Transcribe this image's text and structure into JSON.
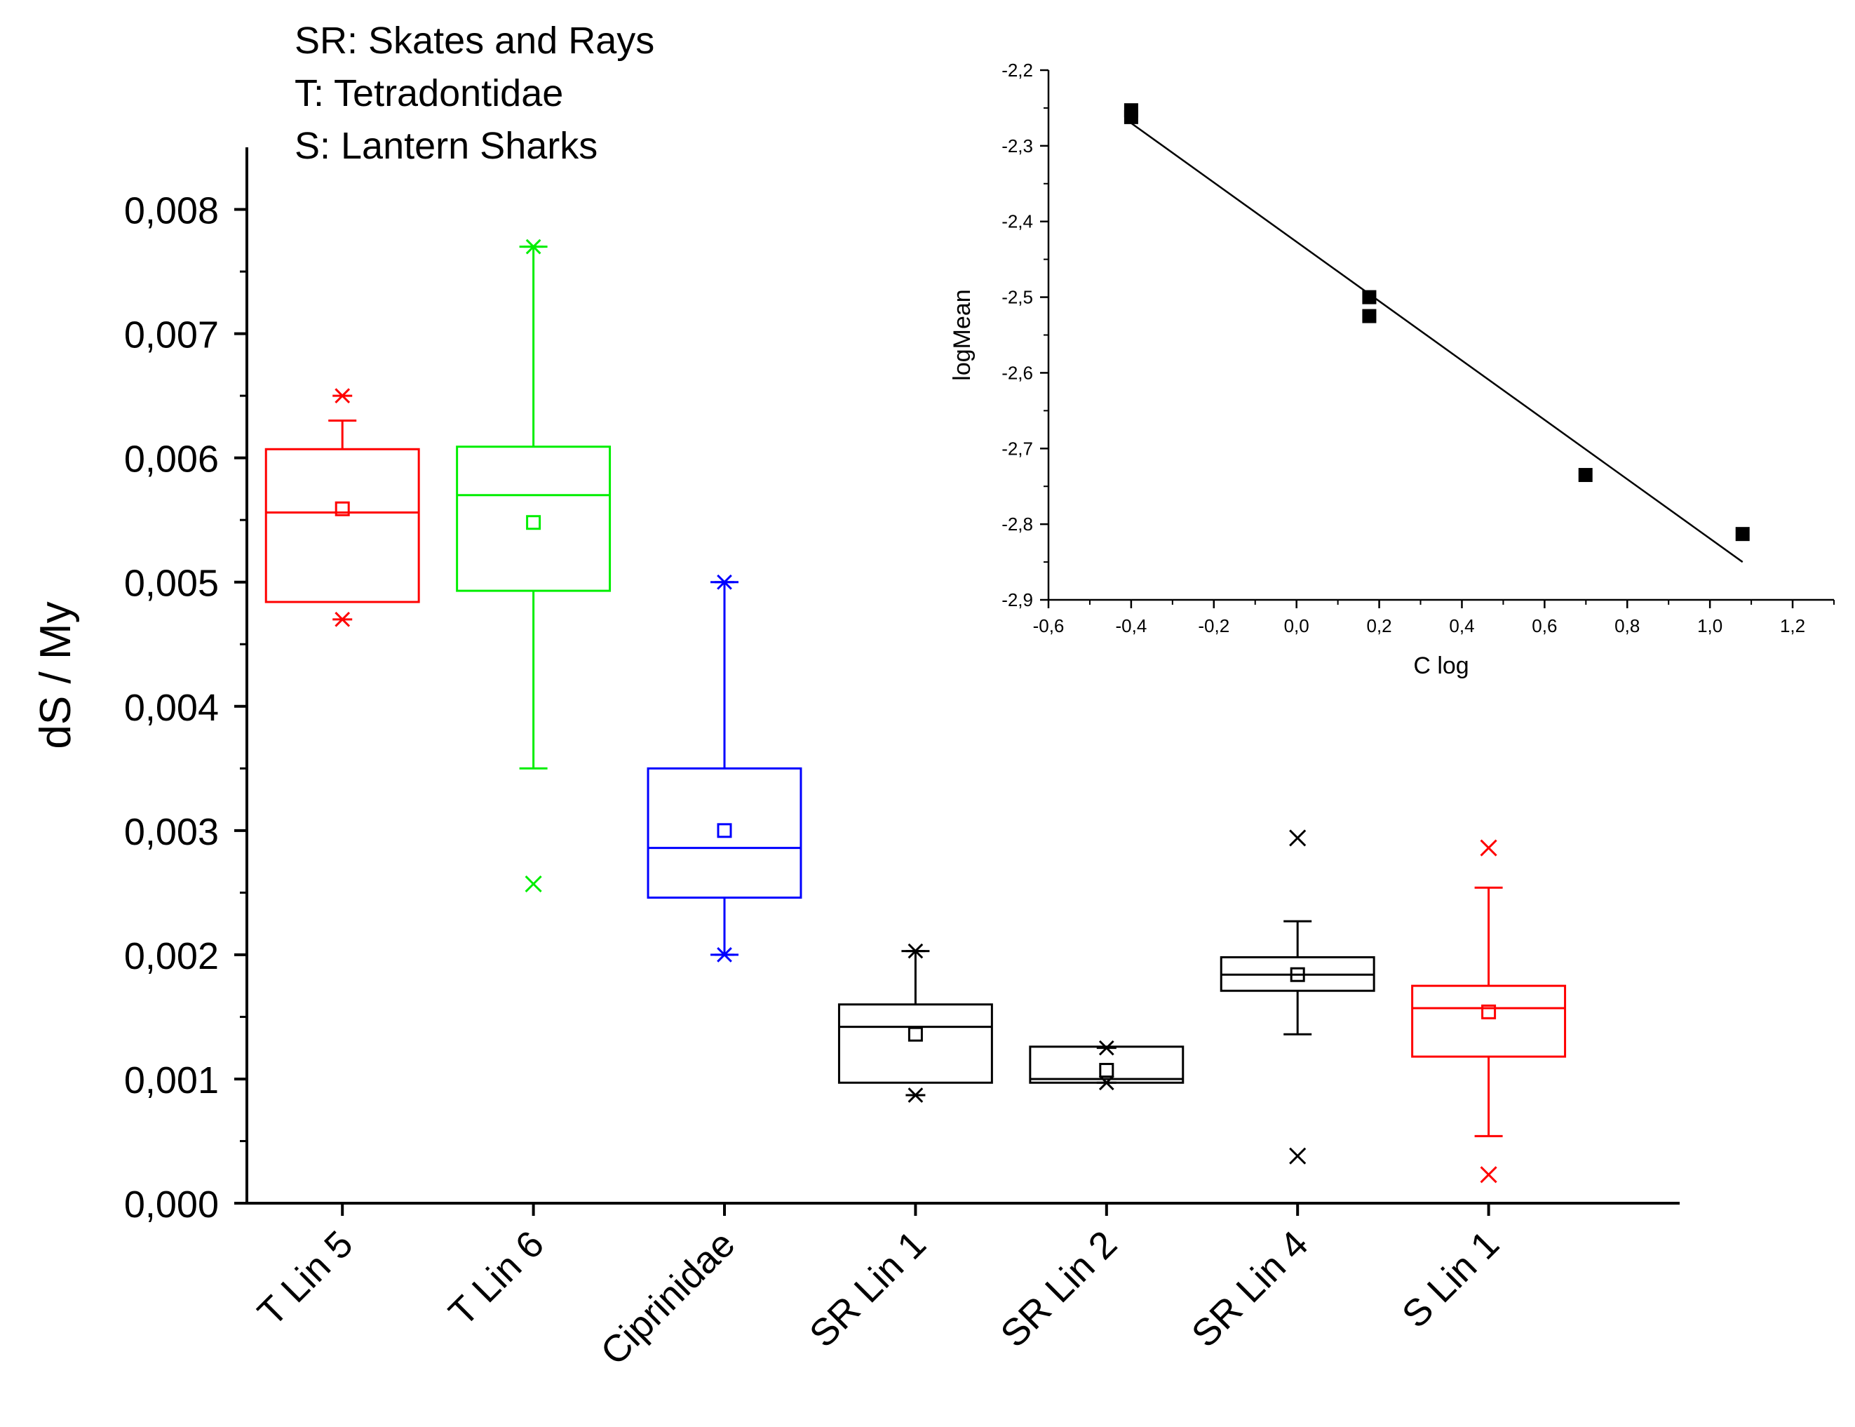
{
  "legend_lines": [
    "SR: Skates and Rays",
    "T: Tetradontidae",
    "S: Lantern Sharks"
  ],
  "chart_data": [
    {
      "type": "box",
      "ylabel": "dS / My",
      "ylim": [
        0,
        0.0085
      ],
      "yticks": [
        {
          "value": 0.0,
          "label": "0,000"
        },
        {
          "value": 0.001,
          "label": "0,001"
        },
        {
          "value": 0.002,
          "label": "0,002"
        },
        {
          "value": 0.003,
          "label": "0,003"
        },
        {
          "value": 0.004,
          "label": "0,004"
        },
        {
          "value": 0.005,
          "label": "0,005"
        },
        {
          "value": 0.006,
          "label": "0,006"
        },
        {
          "value": 0.007,
          "label": "0,007"
        },
        {
          "value": 0.008,
          "label": "0,008"
        }
      ],
      "boxes": [
        {
          "category": "T Lin 5",
          "color": "#ff0000",
          "q1": 0.00484,
          "median": 0.00556,
          "q3": 0.00607,
          "mean": 0.00559,
          "whisker_low": null,
          "whisker_high": 0.0063,
          "outliers": [
            {
              "value": 0.0065,
              "marker": "star"
            },
            {
              "value": 0.0047,
              "marker": "star"
            }
          ]
        },
        {
          "category": "T Lin 6",
          "color": "#00ee00",
          "q1": 0.00493,
          "median": 0.0057,
          "q3": 0.00609,
          "mean": 0.00548,
          "whisker_low": 0.0035,
          "whisker_high": 0.0077,
          "outliers": [
            {
              "value": 0.0077,
              "marker": "star"
            },
            {
              "value": 0.00257,
              "marker": "cross"
            }
          ]
        },
        {
          "category": "Ciprinidae",
          "color": "#0000ff",
          "q1": 0.00246,
          "median": 0.00286,
          "q3": 0.0035,
          "mean": 0.003,
          "whisker_low": 0.002,
          "whisker_high": 0.005,
          "outliers": [
            {
              "value": 0.005,
              "marker": "star"
            },
            {
              "value": 0.002,
              "marker": "star"
            }
          ]
        },
        {
          "category": "SR Lin 1",
          "color": "#000000",
          "q1": 0.00097,
          "median": 0.00142,
          "q3": 0.0016,
          "mean": 0.00136,
          "whisker_low": null,
          "whisker_high": 0.00203,
          "outliers": [
            {
              "value": 0.00203,
              "marker": "star"
            },
            {
              "value": 0.00087,
              "marker": "star"
            }
          ]
        },
        {
          "category": "SR Lin 2",
          "color": "#000000",
          "q1": 0.00097,
          "median": 0.001,
          "q3": 0.00126,
          "mean": 0.00107,
          "whisker_low": null,
          "whisker_high": null,
          "outliers": [
            {
              "value": 0.00125,
              "marker": "star"
            },
            {
              "value": 0.00097,
              "marker": "star"
            }
          ]
        },
        {
          "category": "SR Lin 4",
          "color": "#000000",
          "q1": 0.00171,
          "median": 0.00184,
          "q3": 0.00198,
          "mean": 0.00184,
          "whisker_low": 0.00136,
          "whisker_high": 0.00227,
          "outliers": [
            {
              "value": 0.00294,
              "marker": "cross"
            },
            {
              "value": 0.00038,
              "marker": "cross"
            }
          ]
        },
        {
          "category": "S Lin 1",
          "color": "#ff0000",
          "q1": 0.00118,
          "median": 0.00157,
          "q3": 0.00175,
          "mean": 0.00154,
          "whisker_low": 0.00054,
          "whisker_high": 0.00254,
          "outliers": [
            {
              "value": 0.00286,
              "marker": "cross"
            },
            {
              "value": 0.00023,
              "marker": "cross"
            }
          ]
        }
      ]
    },
    {
      "type": "scatter",
      "xlabel": "C log",
      "ylabel": "logMean",
      "xlim": [
        -0.6,
        1.3
      ],
      "ylim": [
        -2.9,
        -2.2
      ],
      "xticks": [
        {
          "value": -0.6,
          "label": "-0,6"
        },
        {
          "value": -0.4,
          "label": "-0,4"
        },
        {
          "value": -0.2,
          "label": "-0,2"
        },
        {
          "value": 0.0,
          "label": "0,0"
        },
        {
          "value": 0.2,
          "label": "0,2"
        },
        {
          "value": 0.4,
          "label": "0,4"
        },
        {
          "value": 0.6,
          "label": "0,6"
        },
        {
          "value": 0.8,
          "label": "0,8"
        },
        {
          "value": 1.0,
          "label": "1,0"
        },
        {
          "value": 1.2,
          "label": "1,2"
        }
      ],
      "yticks": [
        {
          "value": -2.2,
          "label": "-2,2"
        },
        {
          "value": -2.3,
          "label": "-2,3"
        },
        {
          "value": -2.4,
          "label": "-2,4"
        },
        {
          "value": -2.5,
          "label": "-2,5"
        },
        {
          "value": -2.6,
          "label": "-2,6"
        },
        {
          "value": -2.7,
          "label": "-2,7"
        },
        {
          "value": -2.8,
          "label": "-2,8"
        },
        {
          "value": -2.9,
          "label": "-2,9"
        }
      ],
      "points": [
        {
          "x": -0.4,
          "y": -2.253
        },
        {
          "x": -0.4,
          "y": -2.262
        },
        {
          "x": 0.176,
          "y": -2.5
        },
        {
          "x": 0.176,
          "y": -2.525
        },
        {
          "x": 0.699,
          "y": -2.735
        },
        {
          "x": 1.079,
          "y": -2.813
        }
      ],
      "fit_line": {
        "x": [
          -0.4,
          1.079
        ],
        "y": [
          -2.27,
          -2.85
        ]
      }
    }
  ]
}
